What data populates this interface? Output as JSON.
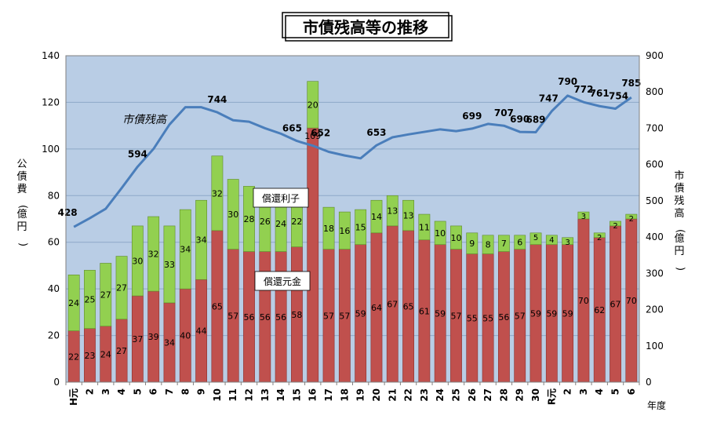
{
  "chart_data": {
    "type": "bar+line",
    "title": "市債残高等の推移",
    "categories": [
      "H元",
      "2",
      "3",
      "4",
      "5",
      "6",
      "7",
      "8",
      "9",
      "10",
      "11",
      "12",
      "13",
      "14",
      "15",
      "16",
      "17",
      "18",
      "19",
      "20",
      "21",
      "22",
      "23",
      "24",
      "25",
      "26",
      "27",
      "28",
      "29",
      "30",
      "R元",
      "2",
      "3",
      "4",
      "5",
      "6"
    ],
    "xlabel": "年度",
    "ylabel_left": "公債費(億円)",
    "ylabel_right": "市債残高(億円)",
    "ylim_left": [
      0,
      140
    ],
    "ylim_right": [
      0,
      900
    ],
    "yticks_left": [
      "0",
      "20",
      "40",
      "60",
      "80",
      "100",
      "120",
      "140"
    ],
    "yticks_right": [
      "0",
      "100",
      "200",
      "300",
      "400",
      "500",
      "600",
      "700",
      "800",
      "900"
    ],
    "series": [
      {
        "name": "償還元金",
        "axis": "left",
        "color": "#c0504d",
        "values": [
          22,
          23,
          24,
          27,
          37,
          39,
          34,
          40,
          44,
          65,
          57,
          56,
          56,
          56,
          58,
          109,
          57,
          57,
          59,
          64,
          67,
          65,
          61,
          59,
          57,
          55,
          55,
          56,
          57,
          59,
          59,
          59,
          70,
          62,
          67,
          70
        ]
      },
      {
        "name": "償還利子",
        "axis": "left",
        "color": "#92d050",
        "values": [
          24,
          25,
          27,
          27,
          30,
          32,
          33,
          34,
          34,
          32,
          30,
          28,
          26,
          24,
          22,
          20,
          18,
          16,
          15,
          14,
          13,
          13,
          11,
          10,
          10,
          9,
          8,
          7,
          6,
          5,
          4,
          3,
          3,
          2,
          2,
          2
        ]
      },
      {
        "name": "市債残高",
        "axis": "right",
        "color": "#4a7ebb",
        "values": [
          428,
          452,
          478,
          535,
          594,
          643,
          710,
          758,
          758,
          744,
          722,
          718,
          700,
          685,
          665,
          652,
          635,
          625,
          617,
          653,
          675,
          683,
          690,
          697,
          692,
          699,
          712,
          707,
          690,
          689,
          747,
          790,
          772,
          761,
          754,
          785
        ],
        "labels": [
          {
            "index": 0,
            "text": "428"
          },
          {
            "index": 4,
            "text": "594"
          },
          {
            "index": 9,
            "text": "744"
          },
          {
            "index": 14,
            "text": "665"
          },
          {
            "index": 15,
            "text": "652"
          },
          {
            "index": 19,
            "text": "653"
          },
          {
            "index": 25,
            "text": "699"
          },
          {
            "index": 27,
            "text": "707"
          },
          {
            "index": 28,
            "text": "690"
          },
          {
            "index": 29,
            "text": "689"
          },
          {
            "index": 30,
            "text": "747"
          },
          {
            "index": 31,
            "text": "790"
          },
          {
            "index": 32,
            "text": "772"
          },
          {
            "index": 33,
            "text": "761"
          },
          {
            "index": 34,
            "text": "754"
          },
          {
            "index": 35,
            "text": "785"
          }
        ]
      }
    ],
    "annotations": {
      "line_label": "市債残高",
      "interest_label": "償還利子",
      "principal_label": "償還元金"
    },
    "grid": true,
    "plot_background": "#b9cde5"
  }
}
